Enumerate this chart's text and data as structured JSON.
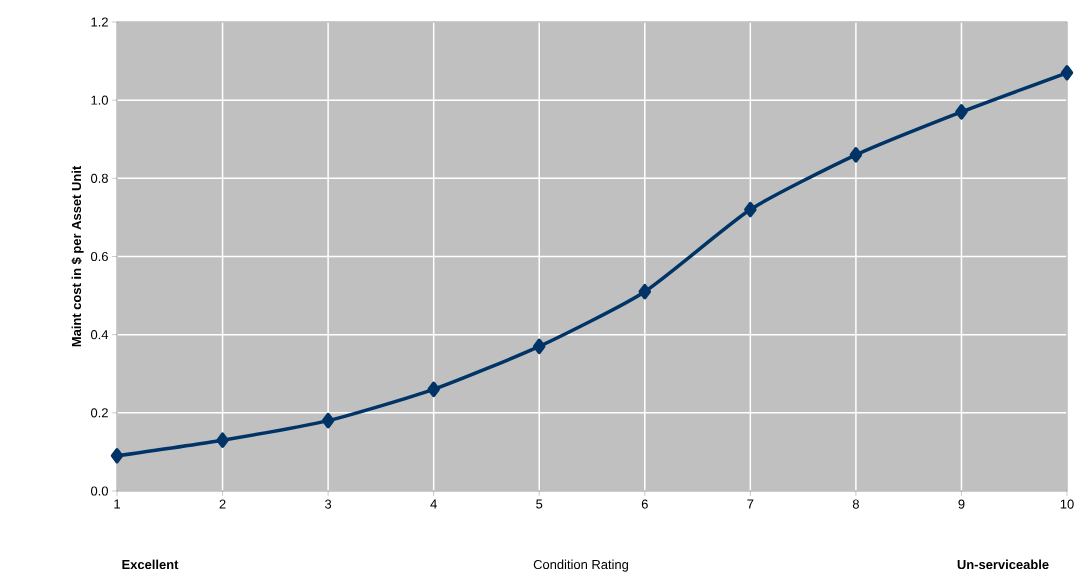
{
  "chart_data": {
    "type": "line",
    "xlabel": "Condition Rating",
    "ylabel": "Maint cost in $ per Asset Unit",
    "annotations": [
      "**Excellent**",
      "**Un-serviceable**"
    ],
    "x": [
      1,
      2,
      3,
      4,
      5,
      6,
      7,
      8,
      9,
      10
    ],
    "series": [
      {
        "color": "#003366",
        "values": [
          0.09,
          0.13,
          0.18,
          0.26,
          0.37,
          0.51,
          0.72,
          0.86,
          0.97,
          1.07
        ]
      }
    ],
    "xlim": [
      1,
      10
    ],
    "xticks": [
      1,
      2,
      3,
      4,
      5,
      6,
      7,
      8,
      9,
      10
    ],
    "ylim": [
      0,
      1.2
    ],
    "yticks": [
      {
        "value": 0,
        "label": "0.0"
      },
      {
        "value": 0.2,
        "label": "0.2"
      },
      {
        "value": 0.4,
        "label": "0.4"
      },
      {
        "value": 0.6,
        "label": "0.6"
      },
      {
        "value": 0.8,
        "label": "0.8"
      },
      {
        "value": 1.0,
        "label": "1.0"
      },
      {
        "value": 1.2,
        "label": "1.2"
      }
    ],
    "grid": true,
    "marker": "diamond",
    "line_style": "solid"
  }
}
